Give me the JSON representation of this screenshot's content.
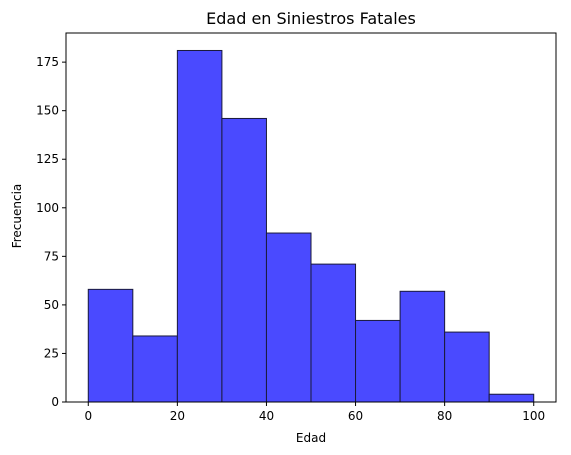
{
  "chart_data": {
    "type": "bar",
    "title": "Edad en Siniestros Fatales",
    "xlabel": "Edad",
    "ylabel": "Frecuencia",
    "bins": [
      {
        "x0": 0,
        "x1": 10,
        "count": 58
      },
      {
        "x0": 10,
        "x1": 20,
        "count": 34
      },
      {
        "x0": 20,
        "x1": 30,
        "count": 181
      },
      {
        "x0": 30,
        "x1": 40,
        "count": 146
      },
      {
        "x0": 40,
        "x1": 50,
        "count": 87
      },
      {
        "x0": 50,
        "x1": 60,
        "count": 71
      },
      {
        "x0": 60,
        "x1": 70,
        "count": 42
      },
      {
        "x0": 70,
        "x1": 80,
        "count": 57
      },
      {
        "x0": 80,
        "x1": 90,
        "count": 36
      },
      {
        "x0": 90,
        "x1": 100,
        "count": 4
      }
    ],
    "xlim": [
      -5,
      105
    ],
    "ylim": [
      0,
      190
    ],
    "xticks": [
      "0",
      "20",
      "40",
      "60",
      "80",
      "100"
    ],
    "yticks": [
      "0",
      "25",
      "50",
      "75",
      "100",
      "125",
      "150",
      "175"
    ],
    "grid": false,
    "legend": false,
    "colors": {
      "bar_fill": "#4a4aff",
      "bar_edge": "#1a1a3a",
      "axis": "#000000"
    }
  }
}
